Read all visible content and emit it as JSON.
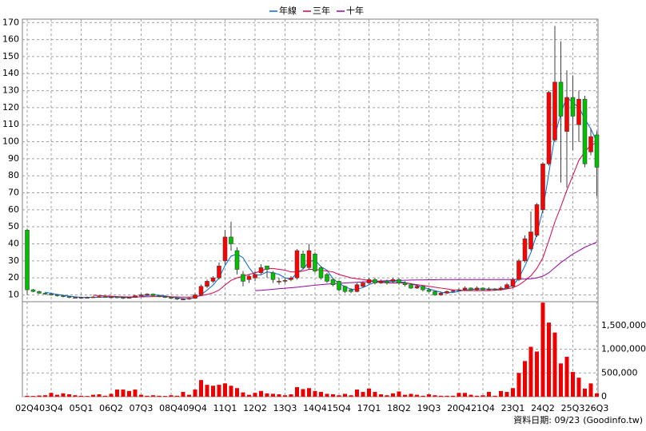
{
  "chart_data": [
    {
      "type": "candlestick",
      "categories": [
        "02Q4",
        null,
        null,
        null,
        "03Q4",
        null,
        null,
        null,
        null,
        "05Q1",
        null,
        null,
        null,
        null,
        "06Q2",
        null,
        null,
        null,
        null,
        "07Q3",
        null,
        null,
        null,
        null,
        "08Q4",
        null,
        null,
        null,
        "09Q4",
        null,
        null,
        null,
        null,
        "11Q1",
        null,
        null,
        null,
        null,
        "12Q2",
        null,
        null,
        null,
        null,
        "13Q3",
        null,
        null,
        null,
        null,
        "14Q4",
        null,
        null,
        null,
        "15Q4",
        null,
        null,
        null,
        null,
        "17Q1",
        null,
        null,
        null,
        null,
        "18Q2",
        null,
        null,
        null,
        null,
        "19Q3",
        null,
        null,
        null,
        null,
        "20Q4",
        null,
        null,
        null,
        "21Q4",
        null,
        null,
        null,
        null,
        "23Q1",
        null,
        null,
        null,
        null,
        "24Q2",
        null,
        null,
        null,
        null,
        "25Q3",
        null,
        null,
        null,
        "26Q3"
      ],
      "open": [
        48,
        13,
        12,
        11,
        10.5,
        10,
        9.5,
        9,
        8.5,
        8.5,
        8.5,
        8.5,
        8.8,
        9,
        8.5,
        8.8,
        8.5,
        8,
        8.5,
        9.5,
        10,
        10.5,
        9.5,
        9,
        8.5,
        8,
        7.5,
        7.5,
        8,
        10,
        15,
        18,
        20,
        30,
        44,
        36,
        22,
        19,
        20,
        23,
        27,
        23,
        18,
        18,
        19,
        20,
        34,
        26,
        34,
        26,
        22,
        19,
        18,
        15,
        13,
        12,
        15,
        17,
        19,
        17,
        18,
        18,
        19,
        17,
        16,
        14,
        15,
        13,
        12,
        10,
        11,
        12,
        12.5,
        13,
        14,
        13,
        14,
        13,
        13.5,
        13,
        14,
        15,
        19,
        30,
        37,
        45,
        60,
        87,
        101,
        135,
        106,
        126,
        110,
        125,
        94,
        104
      ],
      "high": [
        49,
        13.5,
        12.5,
        11.5,
        11,
        10.5,
        10,
        9.5,
        9,
        9,
        9,
        9.2,
        9.5,
        9.2,
        9.2,
        9.2,
        8.8,
        9,
        10,
        10.8,
        11,
        10.8,
        9.8,
        9.3,
        8.8,
        8.2,
        8,
        8.5,
        11,
        16,
        19,
        21,
        29,
        48,
        53,
        38,
        24,
        22,
        24,
        28,
        27,
        24,
        20,
        20,
        21,
        37,
        36,
        40,
        35,
        27,
        23,
        20,
        18.5,
        15.5,
        14,
        17,
        18,
        20,
        20,
        19,
        19,
        20,
        20,
        18,
        17,
        16,
        15.5,
        14,
        12.5,
        12,
        12.5,
        13,
        14,
        15,
        14.5,
        15,
        14.5,
        14.5,
        14,
        15,
        17,
        20,
        31,
        45,
        59,
        64,
        88,
        130,
        168,
        159,
        142,
        139,
        130,
        127,
        108,
        106
      ],
      "low": [
        10,
        11.5,
        10.5,
        10,
        9.5,
        9,
        8.5,
        8,
        8,
        8,
        8,
        8.3,
        8.5,
        8.2,
        8.2,
        8,
        7.5,
        7.8,
        8.3,
        9.2,
        9.5,
        9.2,
        8.6,
        8.2,
        7.5,
        7,
        7,
        7.2,
        7.8,
        9.5,
        14,
        17,
        19,
        28,
        36,
        22,
        15,
        17,
        18,
        22,
        20,
        17,
        16,
        17,
        18,
        19,
        25,
        25,
        23,
        19,
        17,
        15,
        12,
        11,
        11,
        11.5,
        14.5,
        16.5,
        16,
        16.5,
        16,
        17,
        16,
        15,
        13.5,
        13.5,
        12,
        11.5,
        9.5,
        9.5,
        10.5,
        11.5,
        12,
        12.5,
        12.5,
        12.5,
        12.5,
        12.5,
        12.5,
        12.5,
        13.5,
        14,
        18,
        29,
        36,
        44,
        58,
        86,
        100,
        76,
        73,
        95,
        100,
        85,
        92,
        68
      ],
      "close": [
        13,
        12,
        11,
        10.5,
        10,
        9.5,
        9,
        8.5,
        8.5,
        8.5,
        8.5,
        8.8,
        9,
        8.5,
        8.8,
        8.5,
        8,
        8.5,
        9.5,
        10,
        10.5,
        9.5,
        9,
        8.5,
        8,
        7.5,
        7.5,
        8,
        10,
        15,
        18,
        20,
        27,
        44,
        40,
        25,
        18,
        21,
        22,
        26,
        25,
        19,
        18,
        18.5,
        20,
        36,
        26,
        36,
        24,
        20,
        18,
        16,
        13,
        12,
        12,
        16,
        17,
        19,
        17,
        18,
        17,
        19,
        17,
        16,
        14,
        15,
        13,
        12,
        10,
        11,
        12,
        12.5,
        13,
        14,
        13,
        14,
        13,
        13.5,
        13,
        14,
        16,
        19,
        30,
        43,
        47,
        63,
        87,
        129,
        135,
        115,
        126,
        115,
        125,
        87,
        103,
        85
      ],
      "up_color": "#ff0000",
      "down_color": "#00c000",
      "ylim": [
        6,
        172
      ],
      "yticks": [
        10,
        20,
        30,
        40,
        50,
        60,
        70,
        80,
        90,
        100,
        110,
        120,
        130,
        140,
        150,
        160,
        170
      ],
      "grid": true,
      "series": [
        {
          "name": "年線",
          "color": "#0066dd",
          "values": [
            null,
            null,
            null,
            11.6,
            10.9,
            10.3,
            9.8,
            9.3,
            8.9,
            8.6,
            8.5,
            8.6,
            8.7,
            8.7,
            8.8,
            8.7,
            8.5,
            8.5,
            8.6,
            9,
            9.6,
            9.9,
            9.8,
            9.4,
            8.8,
            8.3,
            7.9,
            7.8,
            8.3,
            10.1,
            12.8,
            15.8,
            20,
            27.3,
            32.8,
            34,
            31.8,
            26,
            21.5,
            21.8,
            23.5,
            23,
            22,
            20.1,
            18.9,
            23.1,
            25.1,
            29.5,
            30.5,
            26.5,
            24.5,
            19.5,
            16.8,
            14.8,
            13.3,
            13.3,
            14.3,
            16,
            17.3,
            17.8,
            17.8,
            17.8,
            17.8,
            17.3,
            16.5,
            15.5,
            14.5,
            13.5,
            12.5,
            11.5,
            11.3,
            11.4,
            12.1,
            12.9,
            13.1,
            13.5,
            13.5,
            13.4,
            13.4,
            13.4,
            14.1,
            15.5,
            19.8,
            27,
            34.8,
            45.8,
            60,
            81.5,
            103.5,
            116.5,
            126.3,
            122.8,
            120.3,
            113.3,
            107.5,
            100
          ]
        },
        {
          "name": "三年",
          "color": "#dd0044",
          "values": [
            null,
            null,
            null,
            null,
            null,
            null,
            null,
            null,
            null,
            null,
            null,
            9.8,
            9.6,
            9.4,
            9.2,
            9,
            8.9,
            8.8,
            8.8,
            8.8,
            8.9,
            9,
            9,
            9,
            8.9,
            8.8,
            8.7,
            8.7,
            9,
            9.5,
            10.3,
            11.2,
            12.8,
            15.8,
            18.5,
            20,
            21,
            22,
            23,
            24,
            25.5,
            25.5,
            25,
            24.5,
            23.5,
            23.5,
            24,
            25,
            25,
            24.5,
            24,
            23.5,
            22,
            21,
            20,
            19.5,
            19,
            18.5,
            18,
            17.5,
            17,
            17,
            17,
            17,
            16.5,
            16,
            15.5,
            15,
            14.5,
            14,
            13.5,
            13,
            12.8,
            12.5,
            12.5,
            12.5,
            12.5,
            12.5,
            12.7,
            13,
            13.5,
            14.2,
            15.8,
            18.3,
            21.2,
            25.6,
            31.8,
            41.9,
            52.9,
            61.8,
            71.5,
            80.1,
            89,
            94.1,
            98,
            99.4
          ]
        },
        {
          "name": "十年",
          "color": "#9900aa",
          "values": [
            null,
            null,
            null,
            null,
            null,
            null,
            null,
            null,
            null,
            null,
            null,
            null,
            null,
            null,
            null,
            null,
            null,
            null,
            null,
            null,
            null,
            null,
            null,
            null,
            null,
            null,
            null,
            null,
            null,
            null,
            null,
            null,
            null,
            null,
            null,
            null,
            null,
            null,
            12.5,
            12.7,
            13,
            13.3,
            13.6,
            13.9,
            14.2,
            14.5,
            14.9,
            15.3,
            15.7,
            16,
            16.3,
            16.6,
            16.8,
            17,
            17.2,
            17.4,
            17.6,
            17.8,
            18,
            18.2,
            18.3,
            18.4,
            18.5,
            18.6,
            18.7,
            18.8,
            18.8,
            18.9,
            18.9,
            19,
            19,
            19,
            19,
            19,
            19,
            19,
            19,
            19,
            19,
            19,
            19,
            19.1,
            19.2,
            19.3,
            19.5,
            20,
            21,
            23,
            26,
            29,
            31.5,
            34,
            36,
            38,
            39.5,
            41
          ]
        }
      ]
    },
    {
      "type": "bar",
      "values": [
        20000,
        15000,
        25000,
        30000,
        80000,
        40000,
        70000,
        50000,
        30000,
        20000,
        15000,
        40000,
        50000,
        20000,
        60000,
        150000,
        150000,
        120000,
        150000,
        40000,
        20000,
        30000,
        20000,
        15000,
        30000,
        20000,
        100000,
        40000,
        150000,
        350000,
        250000,
        230000,
        250000,
        280000,
        230000,
        180000,
        90000,
        40000,
        80000,
        120000,
        70000,
        60000,
        50000,
        30000,
        50000,
        200000,
        160000,
        180000,
        120000,
        100000,
        60000,
        50000,
        30000,
        60000,
        30000,
        150000,
        100000,
        170000,
        100000,
        50000,
        30000,
        70000,
        110000,
        40000,
        60000,
        40000,
        20000,
        50000,
        30000,
        20000,
        20000,
        20000,
        80000,
        80000,
        40000,
        20000,
        30000,
        100000,
        20000,
        120000,
        100000,
        180000,
        500000,
        750000,
        1050000,
        950000,
        1980000,
        1560000,
        1350000,
        700000,
        840000,
        520000,
        400000,
        170000,
        280000,
        70000
      ],
      "color": "#ee0000",
      "ylim": [
        0,
        2000000
      ],
      "yticks": [
        0,
        {
          "value": 500000,
          "label": "500,000"
        },
        {
          "value": 1000000,
          "label": "1,000,000"
        },
        {
          "value": 1500000,
          "label": "1,500,000"
        }
      ],
      "grid": true
    }
  ],
  "footer": {
    "date": "資料日期: 09/23",
    "source": "(Goodinfo.tw)"
  }
}
